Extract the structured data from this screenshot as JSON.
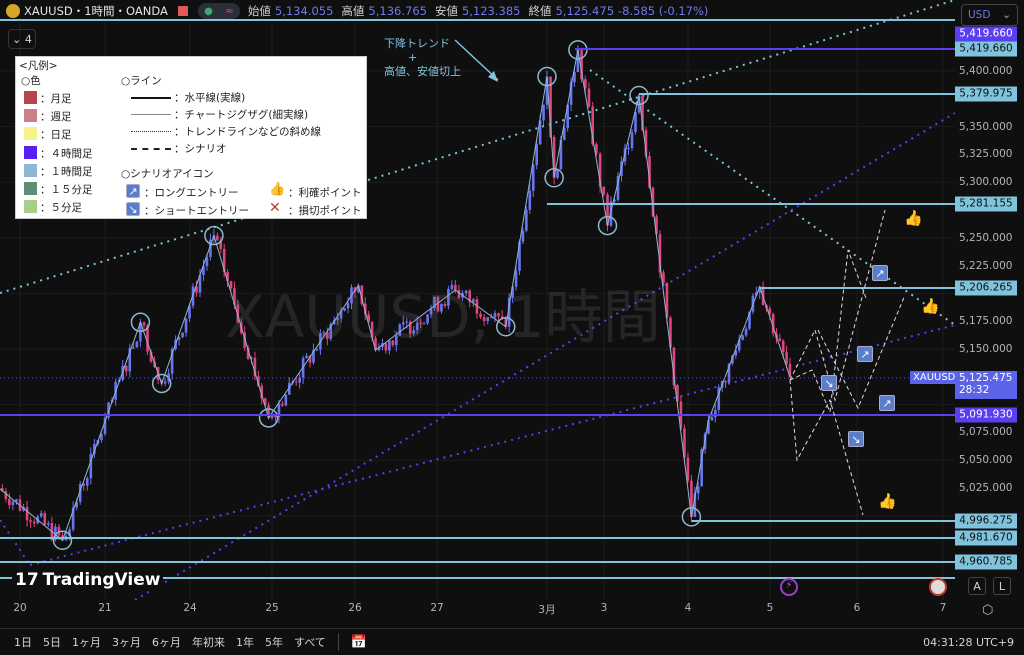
{
  "header": {
    "symbol": "XAUUSD・1時間・OANDA",
    "open_label": "始値",
    "open": "5,134.055",
    "high_label": "高値",
    "high": "5,136.765",
    "low_label": "安値",
    "low": "5,123.385",
    "close_label": "終値",
    "close": "5,125.475",
    "change": "-8.585 (-0.17%)",
    "pill_icon": "≈",
    "indicator_count": "4"
  },
  "currency": "USD",
  "legend": {
    "title": "<凡例>",
    "color_head": "○色",
    "colors": [
      {
        "label": "：月足",
        "color": "#b5454f"
      },
      {
        "label": "：週足",
        "color": "#c98088"
      },
      {
        "label": "：日足",
        "color": "#f5f38a"
      },
      {
        "label": "：４時間足",
        "color": "#5a1ff0"
      },
      {
        "label": "：１時間足",
        "color": "#8db8d2"
      },
      {
        "label": "：１５分足",
        "color": "#5e8f74"
      },
      {
        "label": "：５分足",
        "color": "#a7cf8c"
      }
    ],
    "line_head": "○ライン",
    "lines": [
      "：水平線(実線)",
      "：チャートジグザグ(細実線)",
      "：トレンドラインなどの斜め線",
      "：シナリオ"
    ],
    "icon_head": "○シナリオアイコン",
    "icons": {
      "long": "：ロングエントリー",
      "short": "：ショートエントリー",
      "tp": "：利確ポイント",
      "sl": "：損切ポイント"
    }
  },
  "annotation": {
    "line1": "下降トレンド",
    "line2": "+",
    "line3": "高値、安値切上"
  },
  "watermark": "XAUUSD, 1時間",
  "brand": "TradingView",
  "price_axis": {
    "ticks": [
      "5,400.000",
      "5,350.000",
      "5,325.000",
      "5,300.000",
      "5,250.000",
      "5,225.000",
      "5,175.000",
      "5,150.000",
      "5,075.000",
      "5,050.000",
      "5,025.000"
    ],
    "current": {
      "symbol": "XAUUSD",
      "price": "5,125.475",
      "countdown": "28:32"
    }
  },
  "time_axis": [
    "20",
    "21",
    "24",
    "25",
    "26",
    "27",
    "3月",
    "3",
    "4",
    "5",
    "6",
    "7"
  ],
  "auto_label": "A",
  "log_label": "L",
  "ranges": [
    "1日",
    "5日",
    "1ヶ月",
    "3ヶ月",
    "6ヶ月",
    "年初来",
    "1年",
    "5年",
    "すべて"
  ],
  "clock": "04:31:28 UTC+9",
  "colors": {
    "up": "#6b74f0",
    "down": "#e0457b",
    "hline_light": "#7fc3dd",
    "hline_4h": "#5a3ff0"
  },
  "chart_data": {
    "type": "candlestick",
    "timeframe": "1時間",
    "y_range": [
      4945,
      5450
    ],
    "hlines": [
      {
        "price": 5419.66,
        "label": "5,419.660",
        "color": "#5a3ff0",
        "from": "03-02 13:00"
      },
      {
        "price": 5419.66,
        "label": "5,419.660",
        "color": "#7fc3dd",
        "from": "03-02 13:00"
      },
      {
        "price": 5379.975,
        "label": "5,379.975",
        "color": "#7fc3dd",
        "from": "03-03 10:00"
      },
      {
        "price": 5281.155,
        "label": "5,281.155",
        "color": "#7fc3dd",
        "from": "03-02 00:00"
      },
      {
        "price": 5206.265,
        "label": "5,206.265",
        "color": "#7fc3dd",
        "from": "03-04 21:00"
      },
      {
        "price": 5091.93,
        "label": "5,091.930",
        "color": "#5a3ff0",
        "from": null
      },
      {
        "price": 4996.275,
        "label": "4,996.275",
        "color": "#7fc3dd",
        "from": "03-04 01:00"
      },
      {
        "price": 4981.67,
        "label": "4,981.670",
        "color": "#7fc3dd",
        "from": null
      },
      {
        "price": 4960.785,
        "label": "4,960.785",
        "color": "#7fc3dd",
        "from": null
      }
    ],
    "zigzag": [
      [
        "02-19 18:00",
        5025
      ],
      [
        "02-20 12:00",
        4978
      ],
      [
        "02-21 10:00",
        5174
      ],
      [
        "02-21 16:00",
        5119
      ],
      [
        "02-24 07:00",
        5252
      ],
      [
        "02-24 23:00",
        5088
      ],
      [
        "02-26 01:00",
        5207
      ],
      [
        "02-26 06:00",
        5149
      ],
      [
        "02-27 04:00",
        5203
      ],
      [
        "02-27 15:00",
        5170
      ],
      [
        "03-02 00:00",
        5395
      ],
      [
        "03-02 03:00",
        5304
      ],
      [
        "03-02 13:00",
        5419
      ],
      [
        "03-03 01:00",
        5261
      ],
      [
        "03-03 10:00",
        5378
      ],
      [
        "03-04 01:00",
        4999
      ],
      [
        "03-04 06:00",
        5086
      ],
      [
        "03-04 21:00",
        5206
      ],
      [
        "03-05 05:30",
        5125
      ]
    ],
    "circled_pivots": [
      1,
      2,
      3,
      4,
      5,
      9,
      10,
      11,
      12,
      13,
      14,
      15
    ]
  }
}
